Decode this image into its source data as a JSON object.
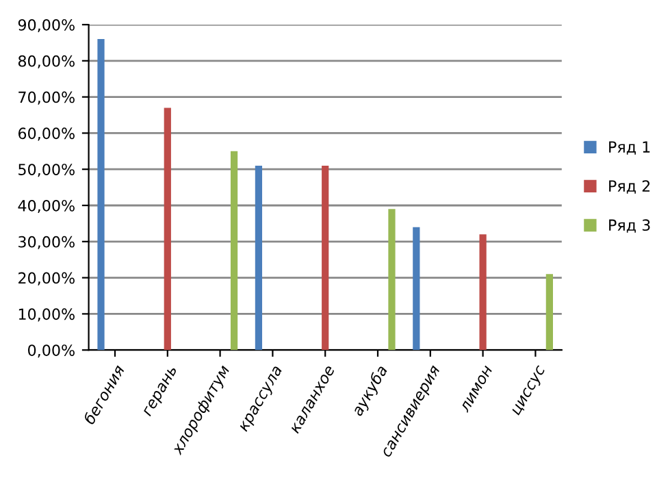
{
  "chart_data": {
    "type": "bar",
    "categories": [
      "бегония",
      "герань",
      "хлорофитум",
      "крассула",
      "каланхое",
      "аукуба",
      "сансивиерия",
      "лимон",
      "циссус"
    ],
    "series": [
      {
        "name": "Ряд 1",
        "color": "#4a7ebb",
        "values": [
          86,
          null,
          null,
          51,
          null,
          null,
          34,
          null,
          null
        ]
      },
      {
        "name": "Ряд 2",
        "color": "#be4b48",
        "values": [
          null,
          67,
          null,
          null,
          51,
          null,
          null,
          32,
          null
        ]
      },
      {
        "name": "Ряд 3",
        "color": "#98b954",
        "values": [
          null,
          null,
          55,
          null,
          null,
          39,
          null,
          null,
          21
        ]
      }
    ],
    "ylim": [
      0,
      90
    ],
    "yticks": [
      {
        "value": 0,
        "label": "0,00%"
      },
      {
        "value": 10,
        "label": "10,00%"
      },
      {
        "value": 20,
        "label": "20,00%"
      },
      {
        "value": 30,
        "label": "30,00%"
      },
      {
        "value": 40,
        "label": "40,00%"
      },
      {
        "value": 50,
        "label": "50,00%"
      },
      {
        "value": 60,
        "label": "60,00%"
      },
      {
        "value": 70,
        "label": "70,00%"
      },
      {
        "value": 80,
        "label": "80,00%"
      },
      {
        "value": 90,
        "label": "90,00%"
      }
    ],
    "grid": "y",
    "legend": "right"
  }
}
